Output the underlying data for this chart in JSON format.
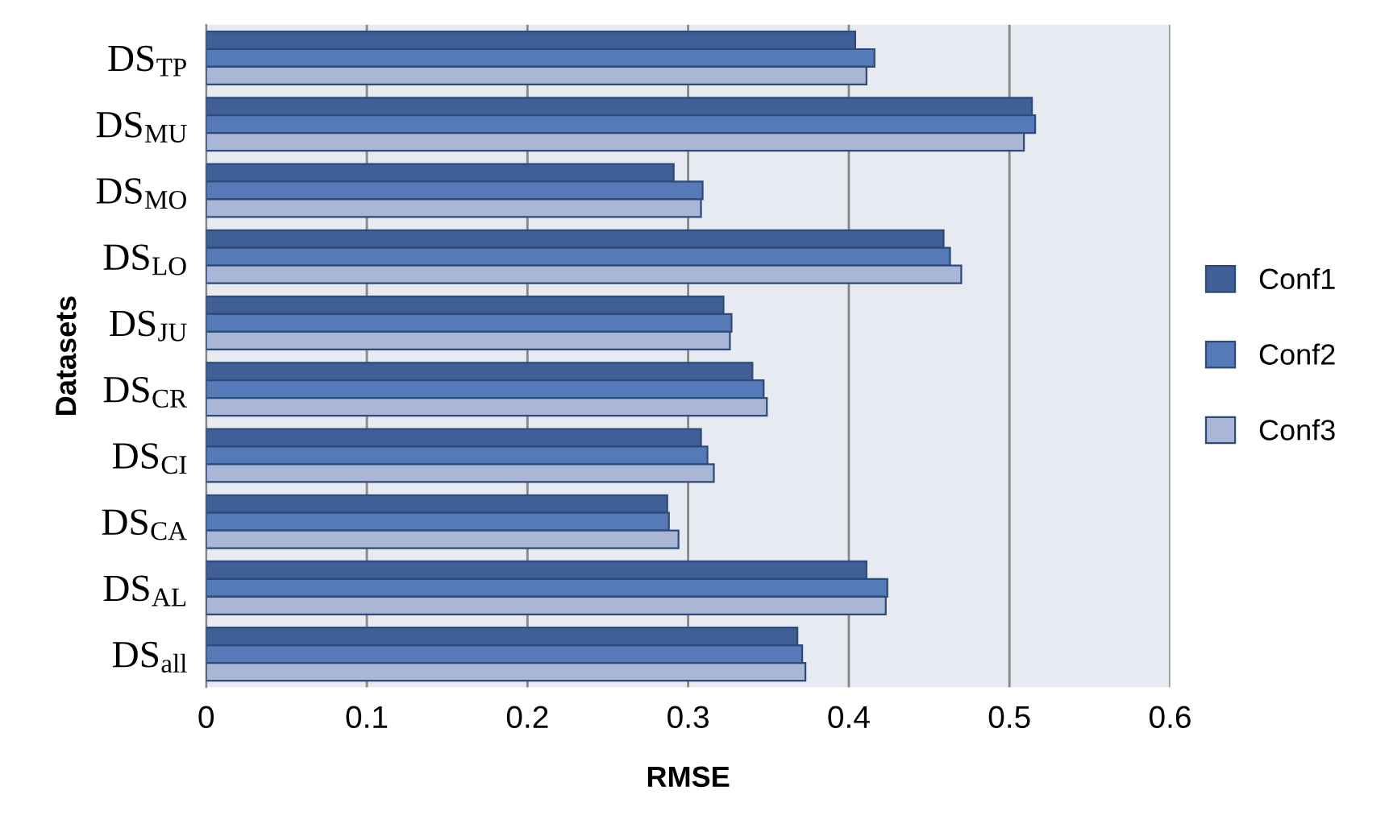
{
  "chart_data": {
    "type": "bar",
    "orientation": "horizontal",
    "xlabel": "RMSE",
    "ylabel": "Datasets",
    "categories": [
      "DS$_{TP}$",
      "DS$_{MU}$",
      "DS$_{MO}$",
      "DS$_{LO}$",
      "DS$_{JU}$",
      "DS$_{CR}$",
      "DS$_{CI}$",
      "DS$_{CA}$",
      "DS$_{AL}$",
      "DS$_{all}$"
    ],
    "series": [
      {
        "name": "Conf1",
        "color": "#3f5f96",
        "values": [
          0.404,
          0.514,
          0.291,
          0.459,
          0.322,
          0.34,
          0.308,
          0.287,
          0.411,
          0.368
        ]
      },
      {
        "name": "Conf2",
        "color": "#5679b8",
        "values": [
          0.416,
          0.516,
          0.309,
          0.463,
          0.327,
          0.347,
          0.312,
          0.288,
          0.424,
          0.371
        ]
      },
      {
        "name": "Conf3",
        "color": "#aab6d6",
        "values": [
          0.411,
          0.509,
          0.308,
          0.47,
          0.326,
          0.349,
          0.316,
          0.294,
          0.423,
          0.373
        ]
      }
    ],
    "xlim": [
      0,
      0.6
    ],
    "xticks": [
      0,
      0.1,
      0.2,
      0.3,
      0.4,
      0.5,
      0.6
    ],
    "grid": "x",
    "legend": "right"
  }
}
